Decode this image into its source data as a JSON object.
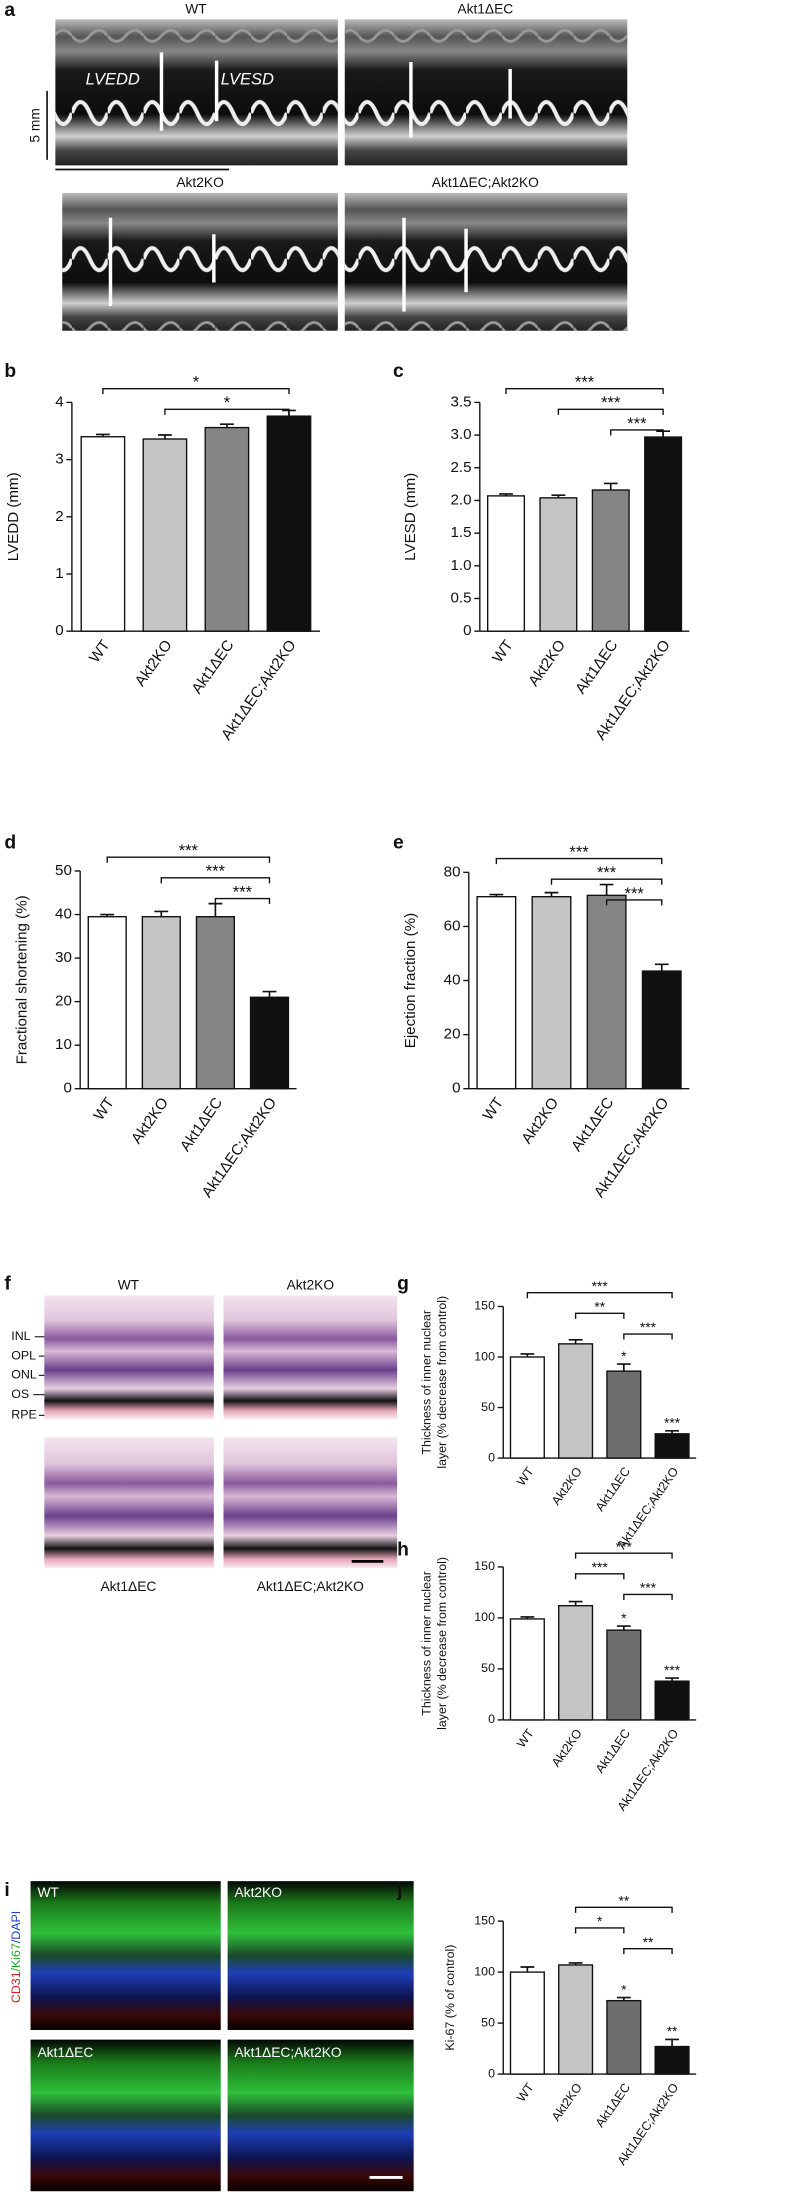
{
  "figure_a": {
    "panel": "a",
    "labels": [
      "WT",
      "Akt1ΔEC",
      "Akt2KO",
      "Akt1ΔEC;Akt2KO"
    ],
    "measures": [
      "LVEDD",
      "LVESD"
    ],
    "scale": "5 mm"
  },
  "figure_f": {
    "panel": "f",
    "labels": [
      "WT",
      "Akt2KO",
      "Akt1ΔEC",
      "Akt1ΔEC;Akt2KO"
    ],
    "layers": [
      "INL",
      "OPL",
      "ONL",
      "OS",
      "RPE"
    ]
  },
  "figure_i": {
    "panel": "i",
    "labels": [
      "WT",
      "Akt2KO",
      "Akt1ΔEC",
      "Akt1ΔEC;Akt2KO"
    ],
    "stain": [
      "CD31",
      "/Ki67",
      "/DAPI"
    ]
  },
  "chart_data": [
    {
      "panel": "b",
      "type": "bar",
      "ylabel": [
        "LVEDD (mm)"
      ],
      "categories": [
        "WT",
        "Akt2KO",
        "Akt1ΔEC",
        "Akt1ΔEC;Akt2KO"
      ],
      "values": [
        3.4,
        3.36,
        3.56,
        3.76
      ],
      "errors": [
        0.04,
        0.07,
        0.06,
        0.1
      ],
      "colors": [
        "#ffffff",
        "#c4c4c4",
        "#858585",
        "#111111"
      ],
      "ylim": [
        0,
        4
      ],
      "yticks": [
        0,
        1,
        2,
        3,
        4
      ],
      "significance": [
        {
          "between": [
            "WT",
            "Akt1ΔEC;Akt2KO"
          ],
          "label": "*"
        },
        {
          "between": [
            "Akt2KO",
            "Akt1ΔEC;Akt2KO"
          ],
          "label": "*"
        }
      ]
    },
    {
      "panel": "c",
      "type": "bar",
      "ylabel": [
        "LVESD (mm)"
      ],
      "categories": [
        "WT",
        "Akt2KO",
        "Akt1ΔEC",
        "Akt1ΔEC;Akt2KO"
      ],
      "values": [
        2.07,
        2.04,
        2.16,
        2.97
      ],
      "errors": [
        0.03,
        0.04,
        0.1,
        0.09
      ],
      "colors": [
        "#ffffff",
        "#c4c4c4",
        "#858585",
        "#111111"
      ],
      "ylim": [
        0,
        3.5
      ],
      "yticks": [
        0,
        0.5,
        {
          "value": 1,
          "label": "1.0"
        },
        1.5,
        {
          "value": 2,
          "label": "2.0"
        },
        2.5,
        {
          "value": 3,
          "label": "3.0"
        },
        3.5
      ],
      "significance": [
        {
          "between": [
            "WT",
            "Akt1ΔEC;Akt2KO"
          ],
          "label": "***"
        },
        {
          "between": [
            "Akt2KO",
            "Akt1ΔEC;Akt2KO"
          ],
          "label": "***"
        },
        {
          "between": [
            "Akt1ΔEC",
            "Akt1ΔEC;Akt2KO"
          ],
          "label": "***"
        }
      ]
    },
    {
      "panel": "d",
      "type": "bar",
      "ylabel": [
        "Fractional shortening (%)"
      ],
      "categories": [
        "WT",
        "Akt2KO",
        "Akt1ΔEC",
        "Akt1ΔEC;Akt2KO"
      ],
      "values": [
        39.5,
        39.5,
        39.5,
        21
      ],
      "errors": [
        0.5,
        1.2,
        3,
        1.3
      ],
      "colors": [
        "#ffffff",
        "#c4c4c4",
        "#858585",
        "#111111"
      ],
      "ylim": [
        0,
        50
      ],
      "yticks": [
        0,
        10,
        20,
        30,
        40,
        50
      ],
      "significance": [
        {
          "between": [
            "WT",
            "Akt1ΔEC;Akt2KO"
          ],
          "label": "***"
        },
        {
          "between": [
            "Akt2KO",
            "Akt1ΔEC;Akt2KO"
          ],
          "label": "***"
        },
        {
          "between": [
            "Akt1ΔEC",
            "Akt1ΔEC;Akt2KO"
          ],
          "label": "***"
        }
      ]
    },
    {
      "panel": "e",
      "type": "bar",
      "ylabel": [
        "Ejection fraction (%)"
      ],
      "categories": [
        "WT",
        "Akt2KO",
        "Akt1ΔEC",
        "Akt1ΔEC;Akt2KO"
      ],
      "values": [
        71,
        71,
        71.5,
        43.5
      ],
      "errors": [
        0.8,
        1.5,
        4,
        2.5
      ],
      "colors": [
        "#ffffff",
        "#c4c4c4",
        "#858585",
        "#111111"
      ],
      "ylim": [
        0,
        80
      ],
      "yticks": [
        0,
        20,
        40,
        60,
        80
      ],
      "significance": [
        {
          "between": [
            "WT",
            "Akt1ΔEC;Akt2KO"
          ],
          "label": "***"
        },
        {
          "between": [
            "Akt2KO",
            "Akt1ΔEC;Akt2KO"
          ],
          "label": "***"
        },
        {
          "between": [
            "Akt1ΔEC",
            "Akt1ΔEC;Akt2KO"
          ],
          "label": "***"
        }
      ]
    },
    {
      "panel": "g",
      "type": "bar",
      "ylabel": [
        "Thickness of inner nuclear",
        "layer (% decrease from control)"
      ],
      "categories": [
        "WT",
        "Akt2KO",
        "Akt1ΔEC",
        "Akt1ΔEC;Akt2KO"
      ],
      "values": [
        100,
        113,
        86,
        24
      ],
      "errors": [
        3,
        4,
        7,
        3
      ],
      "colors": [
        "#ffffff",
        "#c4c4c4",
        "#6e6e6e",
        "#111111"
      ],
      "ylim": [
        0,
        150
      ],
      "yticks": [
        0,
        50,
        100,
        150
      ],
      "bar_labels": [
        null,
        null,
        "*",
        "***"
      ],
      "significance": [
        {
          "between": [
            "WT",
            "Akt1ΔEC;Akt2KO"
          ],
          "label": "***"
        },
        {
          "between": [
            "Akt2KO",
            "Akt1ΔEC"
          ],
          "label": "**"
        },
        {
          "between": [
            "Akt1ΔEC",
            "Akt1ΔEC;Akt2KO"
          ],
          "label": "***"
        }
      ]
    },
    {
      "panel": "h",
      "type": "bar",
      "ylabel": [
        "Thickness of inner nuclear",
        "layer (% decrease from control)"
      ],
      "categories": [
        "WT",
        "Akt2KO",
        "Akt1ΔEC",
        "Akt1ΔEC;Akt2KO"
      ],
      "values": [
        99,
        112,
        88,
        38
      ],
      "errors": [
        2,
        4,
        4,
        3
      ],
      "colors": [
        "#ffffff",
        "#c4c4c4",
        "#6e6e6e",
        "#111111"
      ],
      "ylim": [
        0,
        150
      ],
      "yticks": [
        0,
        50,
        100,
        150
      ],
      "bar_labels": [
        null,
        null,
        "*",
        "***"
      ],
      "significance": [
        {
          "between": [
            "Akt2KO",
            "Akt1ΔEC;Akt2KO"
          ],
          "label": "***"
        },
        {
          "between": [
            "Akt2KO",
            "Akt1ΔEC"
          ],
          "label": "***"
        },
        {
          "between": [
            "Akt1ΔEC",
            "Akt1ΔEC;Akt2KO"
          ],
          "label": "***"
        }
      ]
    },
    {
      "panel": "j",
      "type": "bar",
      "ylabel": [
        "Ki-67 (% of control)"
      ],
      "categories": [
        "WT",
        "Akt2KO",
        "Akt1ΔEC",
        "Akt1ΔEC;Akt2KO"
      ],
      "values": [
        100,
        107,
        72,
        27
      ],
      "errors": [
        5,
        2,
        3,
        7
      ],
      "colors": [
        "#ffffff",
        "#c4c4c4",
        "#6e6e6e",
        "#111111"
      ],
      "ylim": [
        0,
        150
      ],
      "yticks": [
        0,
        50,
        100,
        150
      ],
      "bar_labels": [
        null,
        null,
        "*",
        "**"
      ],
      "significance": [
        {
          "between": [
            "Akt2KO",
            "Akt1ΔEC;Akt2KO"
          ],
          "label": "**"
        },
        {
          "between": [
            "Akt2KO",
            "Akt1ΔEC"
          ],
          "label": "*"
        },
        {
          "between": [
            "Akt1ΔEC",
            "Akt1ΔEC;Akt2KO"
          ],
          "label": "**"
        }
      ]
    }
  ]
}
